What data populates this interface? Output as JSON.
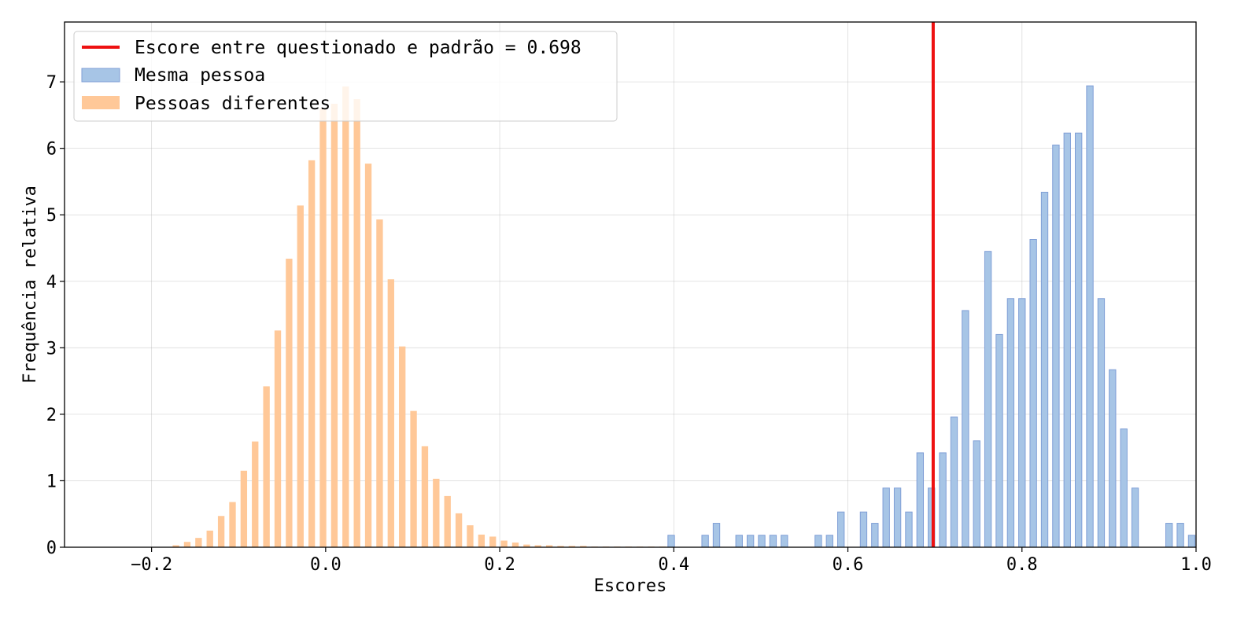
{
  "chart_data": {
    "type": "bar",
    "xlabel": "Escores",
    "ylabel": "Frequência relativa",
    "xlim": [
      -0.3,
      1.0
    ],
    "ylim": [
      0,
      7.9
    ],
    "xticks": [
      -0.2,
      0.0,
      0.2,
      0.4,
      0.6,
      0.8,
      1.0
    ],
    "xtick_labels": [
      "−0.2",
      "0.0",
      "0.2",
      "0.4",
      "0.6",
      "0.8",
      "1.0"
    ],
    "yticks": [
      0,
      1,
      2,
      3,
      4,
      5,
      6,
      7
    ],
    "ytick_labels": [
      "0",
      "1",
      "2",
      "3",
      "4",
      "5",
      "6",
      "7"
    ],
    "grid": true,
    "legend_position": "top-left",
    "threshold": {
      "value": 0.698,
      "label": "Escore entre questionado e padrão = 0.698",
      "color": "#ee1111"
    },
    "series": [
      {
        "name": "Mesma pessoa",
        "color": "#a7c5e6",
        "edge_color": "#7f9ed6",
        "x": [
          0.397,
          0.436,
          0.449,
          0.475,
          0.488,
          0.501,
          0.514,
          0.527,
          0.566,
          0.579,
          0.592,
          0.618,
          0.631,
          0.644,
          0.657,
          0.67,
          0.683,
          0.696,
          0.709,
          0.722,
          0.735,
          0.748,
          0.761,
          0.774,
          0.787,
          0.8,
          0.813,
          0.826,
          0.839,
          0.852,
          0.865,
          0.878,
          0.891,
          0.904,
          0.917,
          0.93,
          0.969,
          0.982,
          0.995
        ],
        "values": [
          0.18,
          0.18,
          0.36,
          0.18,
          0.18,
          0.18,
          0.18,
          0.18,
          0.18,
          0.18,
          0.53,
          0.53,
          0.36,
          0.89,
          0.89,
          0.53,
          1.42,
          0.89,
          1.42,
          1.96,
          3.56,
          1.6,
          4.45,
          3.2,
          3.74,
          3.74,
          4.63,
          5.34,
          6.05,
          6.23,
          6.23,
          6.94,
          3.74,
          2.67,
          1.78,
          0.89,
          0.36,
          0.36,
          0.18
        ]
      },
      {
        "name": "Pessoas diferentes",
        "color": "#ffc898",
        "x": [
          -0.172,
          -0.159,
          -0.146,
          -0.133,
          -0.12,
          -0.107,
          -0.094,
          -0.081,
          -0.068,
          -0.055,
          -0.042,
          -0.029,
          -0.016,
          -0.003,
          0.01,
          0.023,
          0.036,
          0.049,
          0.062,
          0.075,
          0.088,
          0.101,
          0.114,
          0.127,
          0.14,
          0.153,
          0.166,
          0.179,
          0.192,
          0.205,
          0.218,
          0.231,
          0.244,
          0.257,
          0.27,
          0.283,
          0.296,
          0.309,
          0.322,
          0.335,
          0.348,
          0.361,
          0.374,
          0.387
        ],
        "values": [
          0.03,
          0.08,
          0.14,
          0.25,
          0.47,
          0.68,
          1.15,
          1.59,
          2.42,
          3.26,
          4.34,
          5.14,
          5.82,
          6.6,
          6.67,
          6.93,
          6.74,
          5.77,
          4.93,
          4.03,
          3.02,
          2.05,
          1.52,
          1.03,
          0.77,
          0.51,
          0.33,
          0.19,
          0.16,
          0.1,
          0.07,
          0.04,
          0.03,
          0.03,
          0.02,
          0.02,
          0.02,
          0.01,
          0.01,
          0.01,
          0.01,
          0.01,
          0.01,
          0.01
        ]
      }
    ]
  }
}
